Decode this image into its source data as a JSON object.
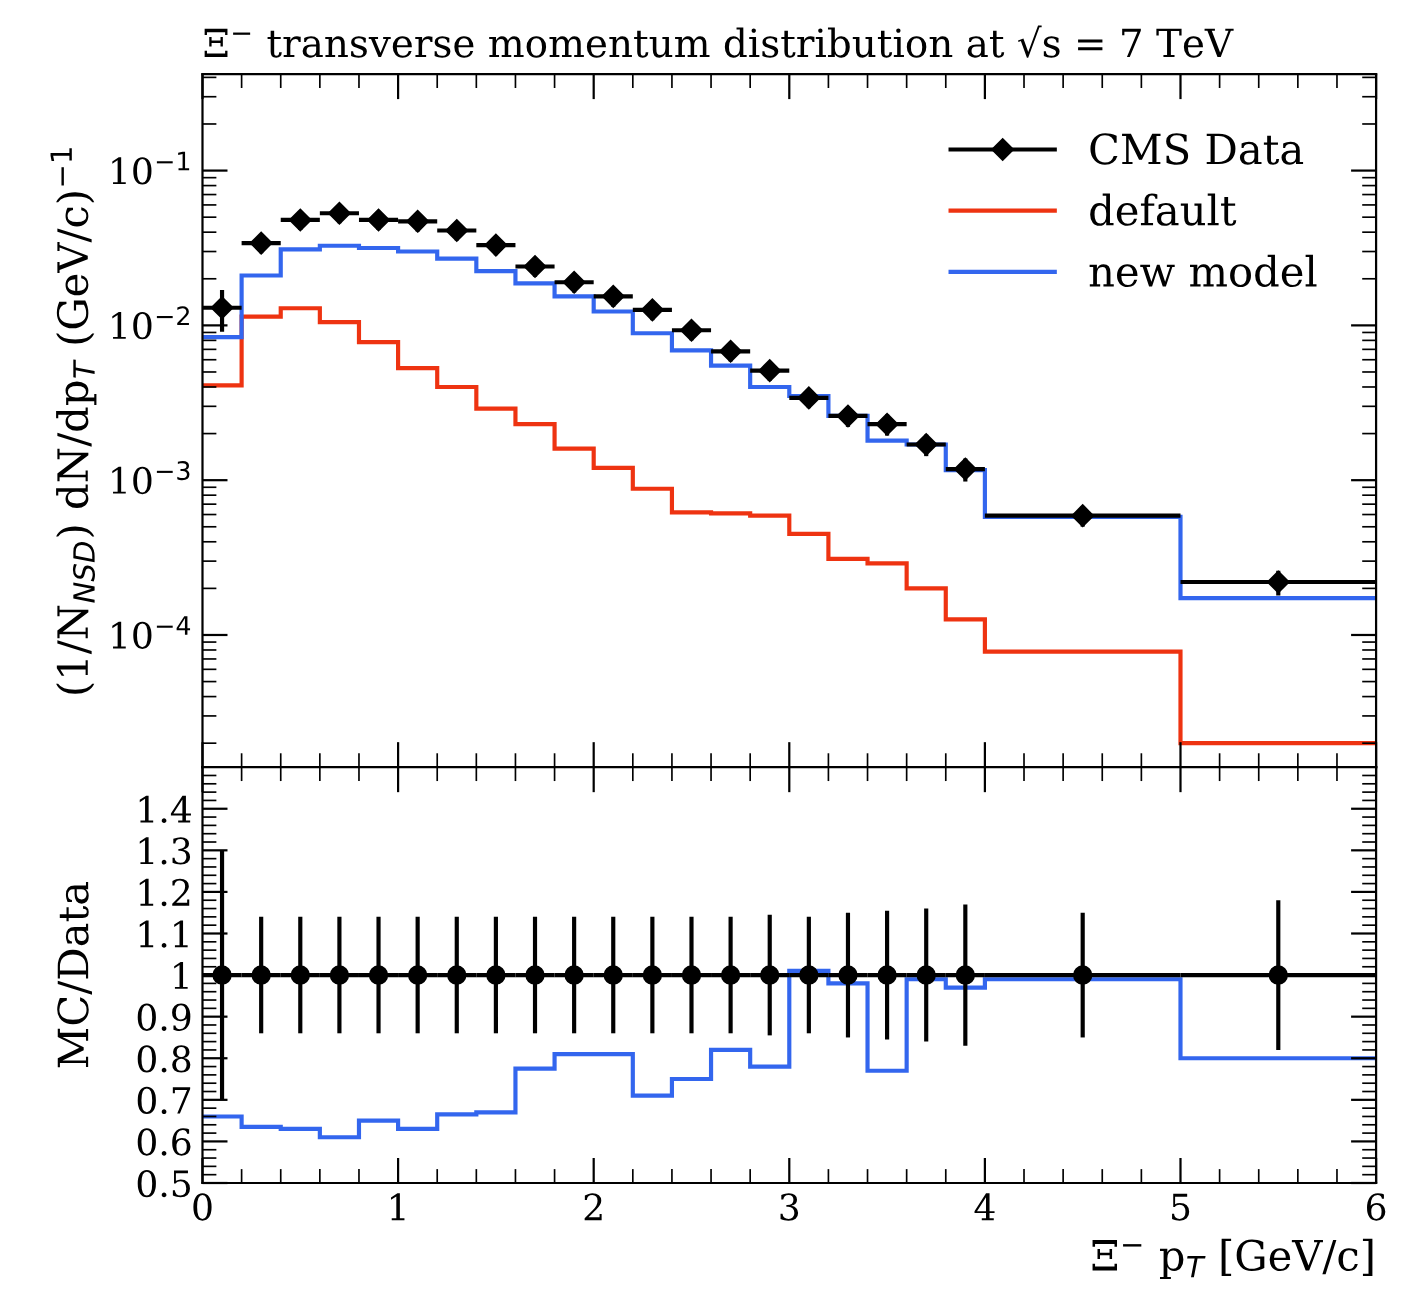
{
  "chart_data": [
    {
      "type": "histogram",
      "title": "Ξ$^{−}$ transverse momentum distribution at √s = 7 TeV",
      "ylabel": "(1/N$_{NSD}$) dN/dp$_{T}$ (GeV/c)$^{−1}$",
      "bins": [
        0,
        0.2,
        0.4,
        0.6,
        0.8,
        1.0,
        1.2,
        1.4,
        1.6,
        1.8,
        2.0,
        2.2,
        2.4,
        2.6,
        2.8,
        3.0,
        3.2,
        3.4,
        3.6,
        3.8,
        4.0,
        5.0,
        6.0
      ],
      "series": [
        {
          "name": "CMS Data",
          "type": "scatter",
          "color": "#000000",
          "marker": "diamond",
          "x": [
            0.1,
            0.3,
            0.5,
            0.7,
            0.9,
            1.1,
            1.3,
            1.5,
            1.7,
            1.9,
            2.1,
            2.3,
            2.5,
            2.7,
            2.9,
            3.1,
            3.3,
            3.5,
            3.7,
            3.9,
            4.5,
            5.5
          ],
          "values": [
            0.013,
            0.034,
            0.048,
            0.053,
            0.048,
            0.047,
            0.041,
            0.033,
            0.024,
            0.019,
            0.0154,
            0.0126,
            0.0093,
            0.0068,
            0.0051,
            0.0034,
            0.0026,
            0.0023,
            0.0017,
            0.00118,
            0.00059,
            0.00022
          ],
          "errors": [
            0.0039,
            0.0048,
            0.0067,
            0.0074,
            0.0067,
            0.0066,
            0.0057,
            0.0046,
            0.0034,
            0.0027,
            0.0022,
            0.0018,
            0.0013,
            0.00095,
            0.00071,
            0.00048,
            0.00039,
            0.00036,
            0.00027,
            0.0002,
            8.9e-05,
            4e-05
          ],
          "xerrors": [
            0.1,
            0.1,
            0.1,
            0.1,
            0.1,
            0.1,
            0.1,
            0.1,
            0.1,
            0.1,
            0.1,
            0.1,
            0.1,
            0.1,
            0.1,
            0.1,
            0.1,
            0.1,
            0.1,
            0.1,
            0.5,
            0.5
          ]
        },
        {
          "name": "default",
          "color": "#ee3311",
          "values": [
            0.0041,
            0.0114,
            0.0129,
            0.0105,
            0.0078,
            0.0053,
            0.004,
            0.0029,
            0.0023,
            0.0016,
            0.0012,
            0.00088,
            0.00062,
            0.00061,
            0.00059,
            0.00045,
            0.00031,
            0.00029,
            0.0002,
            0.000126,
            7.8e-05,
            2e-05
          ]
        },
        {
          "name": "new model",
          "color": "#3366ee",
          "values": [
            0.0084,
            0.021,
            0.031,
            0.0327,
            0.0316,
            0.03,
            0.027,
            0.0224,
            0.0187,
            0.0154,
            0.0123,
            0.0089,
            0.0069,
            0.0055,
            0.004,
            0.0035,
            0.0026,
            0.0018,
            0.0017,
            0.00116,
            0.00058,
            0.000173
          ]
        }
      ],
      "log": true,
      "xlim": [
        0,
        6
      ],
      "xticks": [
        0,
        1,
        2,
        3,
        4,
        5,
        6
      ],
      "ylim": [
        1.4e-05,
        0.42
      ],
      "yticks": [
        {
          "value": 0.0001,
          "label": "10$^{−4}$"
        },
        {
          "value": 0.001,
          "label": "10$^{−3}$"
        },
        {
          "value": 0.01,
          "label": "10$^{−2}$"
        },
        {
          "value": 0.1,
          "label": "10$^{−1}$"
        }
      ],
      "tick_labels": "y",
      "legend": "top right",
      "grid": false
    },
    {
      "type": "histogram",
      "ylabel": "MC/Data",
      "xlabel": "Ξ$^{−}$ p$_{T}$ [GeV/c]",
      "bins": [
        0,
        0.2,
        0.4,
        0.6,
        0.8,
        1.0,
        1.2,
        1.4,
        1.6,
        1.8,
        2.0,
        2.2,
        2.4,
        2.6,
        2.8,
        3.0,
        3.2,
        3.4,
        3.6,
        3.8,
        4.0,
        5.0,
        6.0
      ],
      "series": [
        {
          "type": "scatter",
          "color": "#000000",
          "marker": "circle",
          "x": [
            0.1,
            0.3,
            0.5,
            0.7,
            0.9,
            1.1,
            1.3,
            1.5,
            1.7,
            1.9,
            2.1,
            2.3,
            2.5,
            2.7,
            2.9,
            3.1,
            3.3,
            3.5,
            3.7,
            3.9,
            4.5,
            5.5
          ],
          "values": [
            1,
            1,
            1,
            1,
            1,
            1,
            1,
            1,
            1,
            1,
            1,
            1,
            1,
            1,
            1,
            1,
            1,
            1,
            1,
            1,
            1,
            1
          ],
          "errors": [
            0.3,
            0.14,
            0.14,
            0.14,
            0.14,
            0.14,
            0.14,
            0.14,
            0.14,
            0.14,
            0.14,
            0.14,
            0.14,
            0.14,
            0.145,
            0.14,
            0.15,
            0.155,
            0.16,
            0.17,
            0.15,
            0.18
          ],
          "xerrors": [
            0.1,
            0.1,
            0.1,
            0.1,
            0.1,
            0.1,
            0.1,
            0.1,
            0.1,
            0.1,
            0.1,
            0.1,
            0.1,
            0.1,
            0.1,
            0.1,
            0.1,
            0.1,
            0.1,
            0.1,
            0.5,
            0.5
          ]
        },
        {
          "color": "#3366ee",
          "values": [
            0.66,
            0.635,
            0.63,
            0.61,
            0.65,
            0.63,
            0.665,
            0.67,
            0.775,
            0.81,
            0.81,
            0.71,
            0.75,
            0.82,
            0.78,
            1.01,
            0.98,
            0.77,
            0.99,
            0.97,
            0.99,
            0.8
          ]
        }
      ],
      "xlim": [
        0,
        6
      ],
      "xticks": [
        0,
        1,
        2,
        3,
        4,
        5,
        6
      ],
      "ylim": [
        0.5,
        1.5
      ],
      "yticks": [
        0.5,
        0.6,
        0.7,
        0.8,
        0.9,
        1,
        1.1,
        1.2,
        1.3,
        1.4
      ],
      "grid": false
    }
  ]
}
